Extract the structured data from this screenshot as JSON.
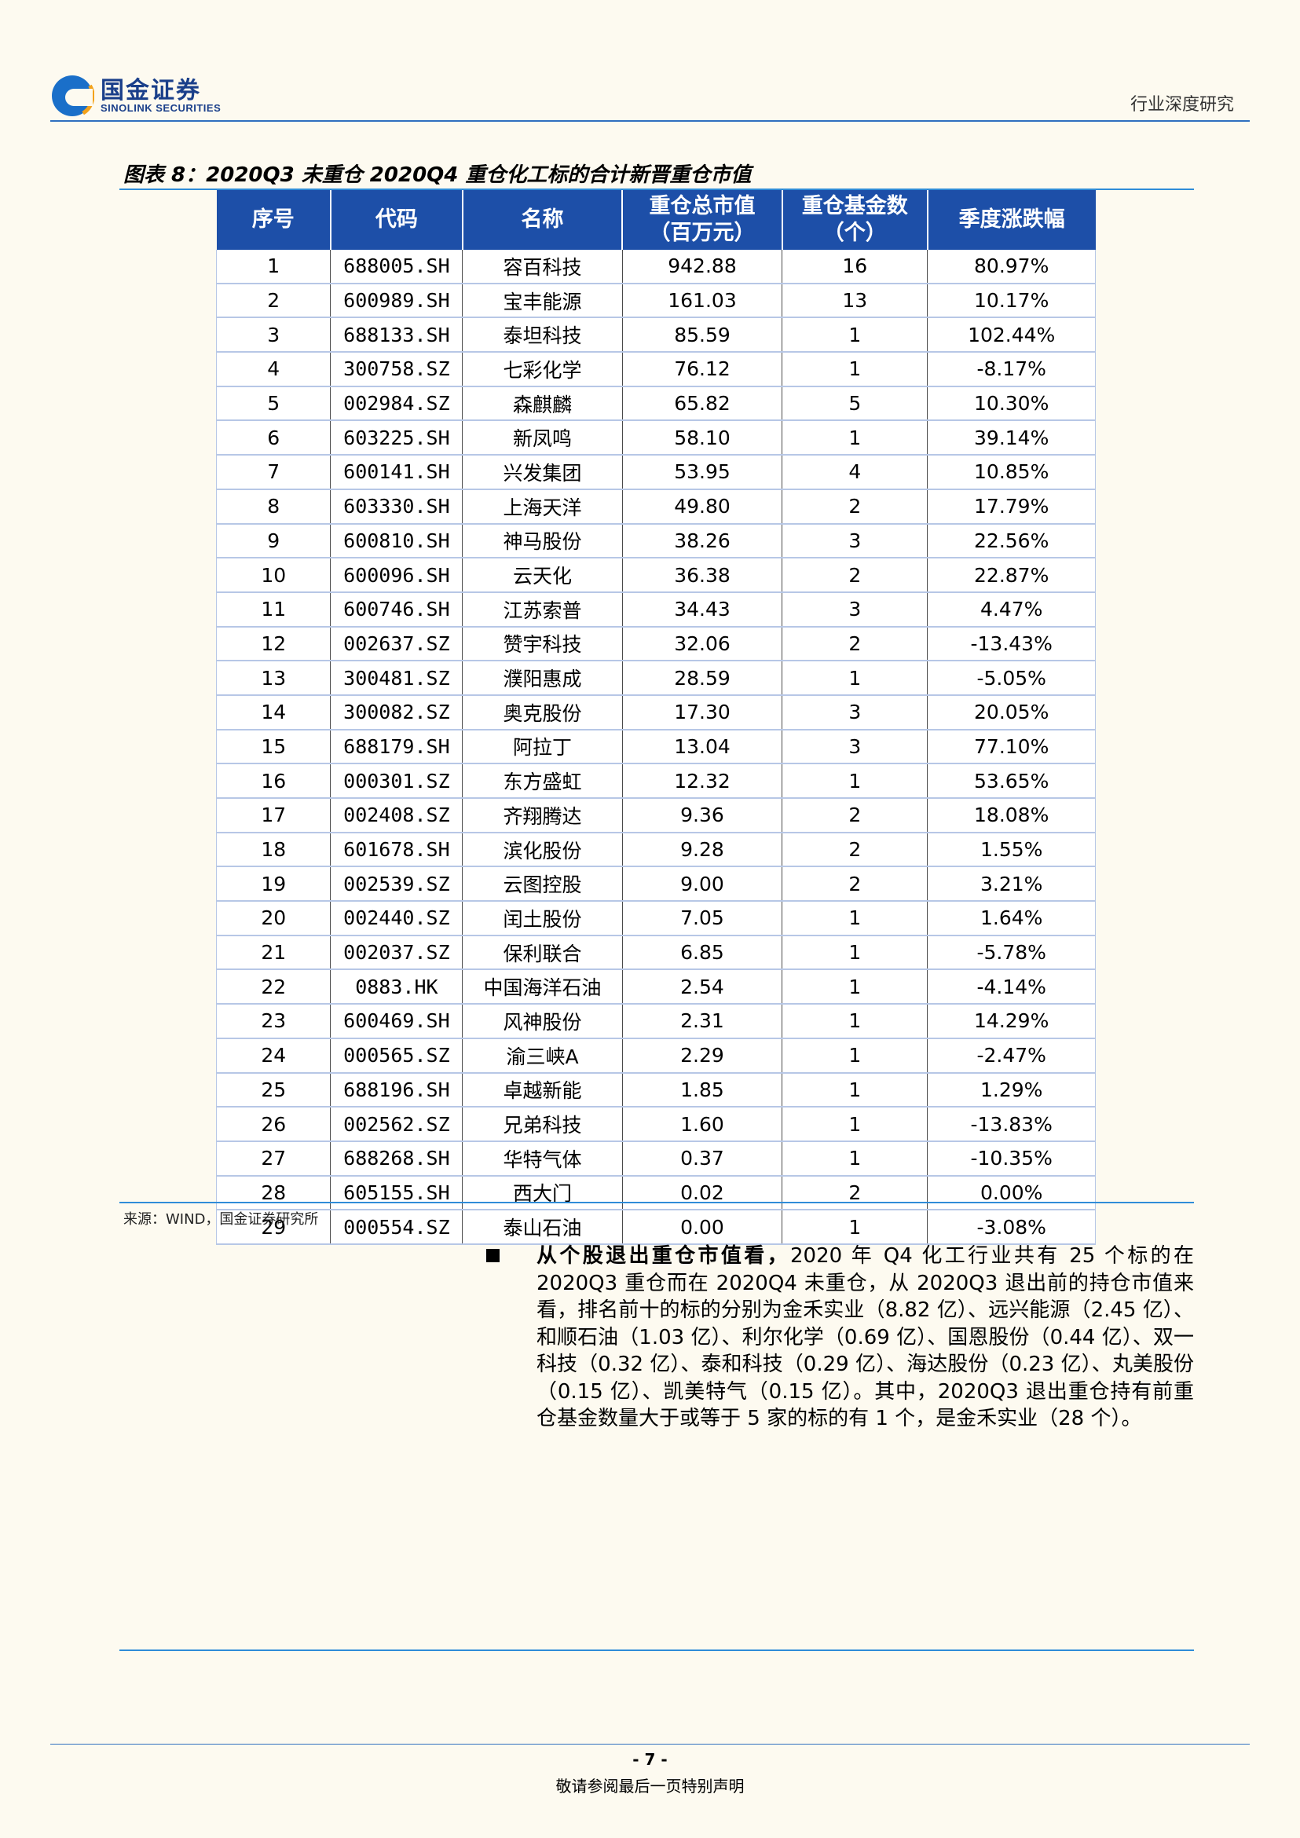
{
  "header": {
    "logo_cn": "国金证券",
    "logo_en": "SINOLINK SECURITIES",
    "section": "行业深度研究"
  },
  "figure": {
    "title": "图表 8：2020Q3 未重仓 2020Q4 重仓化工标的合计新晋重仓市值",
    "source": "来源：WIND，国金证券研究所",
    "columns": [
      "序号",
      "代码",
      "名称",
      "重仓总市值\n（百万元）",
      "重仓基金数\n（个）",
      "季度涨跌幅"
    ],
    "rows": [
      [
        "1",
        "688005.SH",
        "容百科技",
        "942.88",
        "16",
        "80.97%"
      ],
      [
        "2",
        "600989.SH",
        "宝丰能源",
        "161.03",
        "13",
        "10.17%"
      ],
      [
        "3",
        "688133.SH",
        "泰坦科技",
        "85.59",
        "1",
        "102.44%"
      ],
      [
        "4",
        "300758.SZ",
        "七彩化学",
        "76.12",
        "1",
        "-8.17%"
      ],
      [
        "5",
        "002984.SZ",
        "森麒麟",
        "65.82",
        "5",
        "10.30%"
      ],
      [
        "6",
        "603225.SH",
        "新凤鸣",
        "58.10",
        "1",
        "39.14%"
      ],
      [
        "7",
        "600141.SH",
        "兴发集团",
        "53.95",
        "4",
        "10.85%"
      ],
      [
        "8",
        "603330.SH",
        "上海天洋",
        "49.80",
        "2",
        "17.79%"
      ],
      [
        "9",
        "600810.SH",
        "神马股份",
        "38.26",
        "3",
        "22.56%"
      ],
      [
        "10",
        "600096.SH",
        "云天化",
        "36.38",
        "2",
        "22.87%"
      ],
      [
        "11",
        "600746.SH",
        "江苏索普",
        "34.43",
        "3",
        "4.47%"
      ],
      [
        "12",
        "002637.SZ",
        "赞宇科技",
        "32.06",
        "2",
        "-13.43%"
      ],
      [
        "13",
        "300481.SZ",
        "濮阳惠成",
        "28.59",
        "1",
        "-5.05%"
      ],
      [
        "14",
        "300082.SZ",
        "奥克股份",
        "17.30",
        "3",
        "20.05%"
      ],
      [
        "15",
        "688179.SH",
        "阿拉丁",
        "13.04",
        "3",
        "77.10%"
      ],
      [
        "16",
        "000301.SZ",
        "东方盛虹",
        "12.32",
        "1",
        "53.65%"
      ],
      [
        "17",
        "002408.SZ",
        "齐翔腾达",
        "9.36",
        "2",
        "18.08%"
      ],
      [
        "18",
        "601678.SH",
        "滨化股份",
        "9.28",
        "2",
        "1.55%"
      ],
      [
        "19",
        "002539.SZ",
        "云图控股",
        "9.00",
        "2",
        "3.21%"
      ],
      [
        "20",
        "002440.SZ",
        "闰土股份",
        "7.05",
        "1",
        "1.64%"
      ],
      [
        "21",
        "002037.SZ",
        "保利联合",
        "6.85",
        "1",
        "-5.78%"
      ],
      [
        "22",
        "0883.HK",
        "中国海洋石油",
        "2.54",
        "1",
        "-4.14%"
      ],
      [
        "23",
        "600469.SH",
        "风神股份",
        "2.31",
        "1",
        "14.29%"
      ],
      [
        "24",
        "000565.SZ",
        "渝三峡A",
        "2.29",
        "1",
        "-2.47%"
      ],
      [
        "25",
        "688196.SH",
        "卓越新能",
        "1.85",
        "1",
        "1.29%"
      ],
      [
        "26",
        "002562.SZ",
        "兄弟科技",
        "1.60",
        "1",
        "-13.83%"
      ],
      [
        "27",
        "688268.SH",
        "华特气体",
        "0.37",
        "1",
        "-10.35%"
      ],
      [
        "28",
        "605155.SH",
        "西大门",
        "0.02",
        "2",
        "0.00%"
      ],
      [
        "29",
        "000554.SZ",
        "泰山石油",
        "0.00",
        "1",
        "-3.08%"
      ]
    ]
  },
  "body": {
    "bullet_bold": "从个股退出重仓市值看，",
    "bullet_text": "2020 年 Q4 化工行业共有 25 个标的在 2020Q3 重仓而在 2020Q4 未重仓，从 2020Q3 退出前的持仓市值来看，排名前十的标的分别为金禾实业（8.82 亿）、远兴能源（2.45 亿）、和顺石油（1.03 亿）、利尔化学（0.69 亿）、国恩股份（0.44 亿）、双一科技（0.32 亿）、泰和科技（0.29 亿）、海达股份（0.23 亿）、丸美股份（0.15 亿）、凯美特气（0.15 亿）。其中，2020Q3 退出重仓持有前重仓基金数量大于或等于 5 家的标的有 1 个，是金禾实业（28 个）。"
  },
  "footer": {
    "page": "- 7 -",
    "disclaimer": "敬请参阅最后一页特别声明"
  },
  "colors": {
    "header_blue": "#1d4fa8",
    "line_blue": "#2f8cd8"
  }
}
